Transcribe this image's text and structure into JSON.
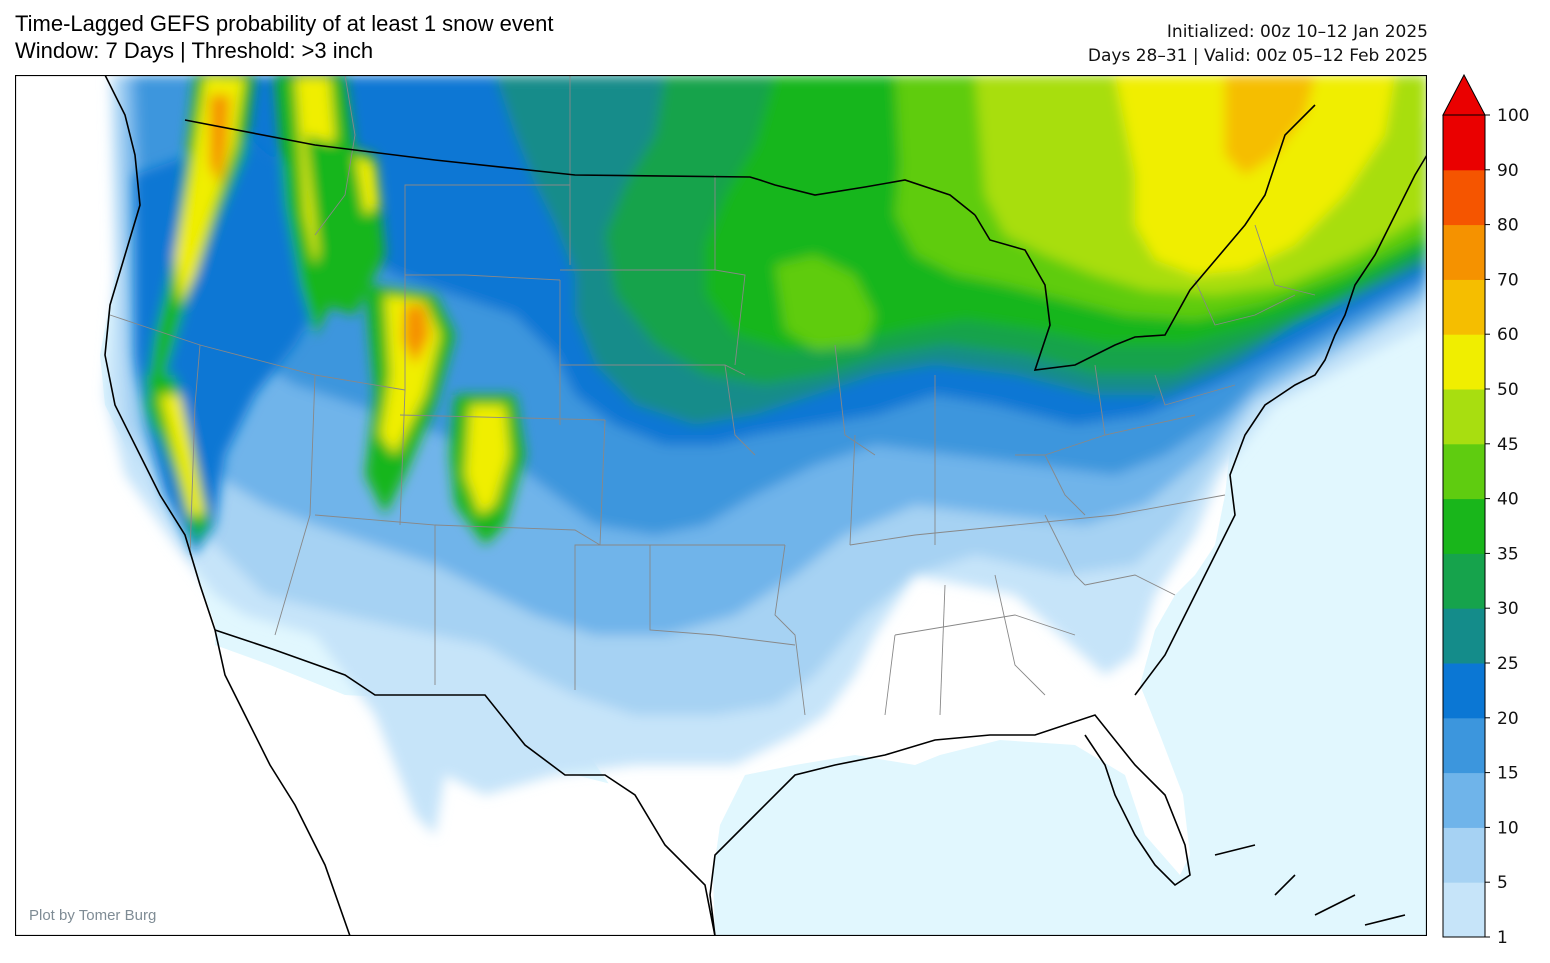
{
  "header": {
    "title_line1": "Time-Lagged GEFS probability of at least 1 snow event",
    "title_line2": "Window: 7 Days | Threshold: >3 inch",
    "init_text": "Initialized: 00z 10–12 Jan 2025",
    "valid_text": "Days 28–31 | Valid: 00z 05–12 Feb 2025"
  },
  "credit": "Plot by Tomer Burg",
  "colorbar": {
    "levels": [
      "1",
      "5",
      "10",
      "15",
      "20",
      "25",
      "30",
      "35",
      "40",
      "45",
      "50",
      "60",
      "70",
      "80",
      "90",
      "100"
    ],
    "colors": [
      "#c6e4f9",
      "#a6d2f3",
      "#6fb4ea",
      "#3c96dd",
      "#0b77d4",
      "#148c8a",
      "#16a34c",
      "#19b61b",
      "#5fcc10",
      "#a8de10",
      "#f0ee00",
      "#f5be00",
      "#f59200",
      "#f55500",
      "#ea0000"
    ]
  },
  "map_colors": {
    "ocean": "#e1f7fe",
    "land": "#ffffff",
    "border": "#000000",
    "state_line": "#888888"
  }
}
